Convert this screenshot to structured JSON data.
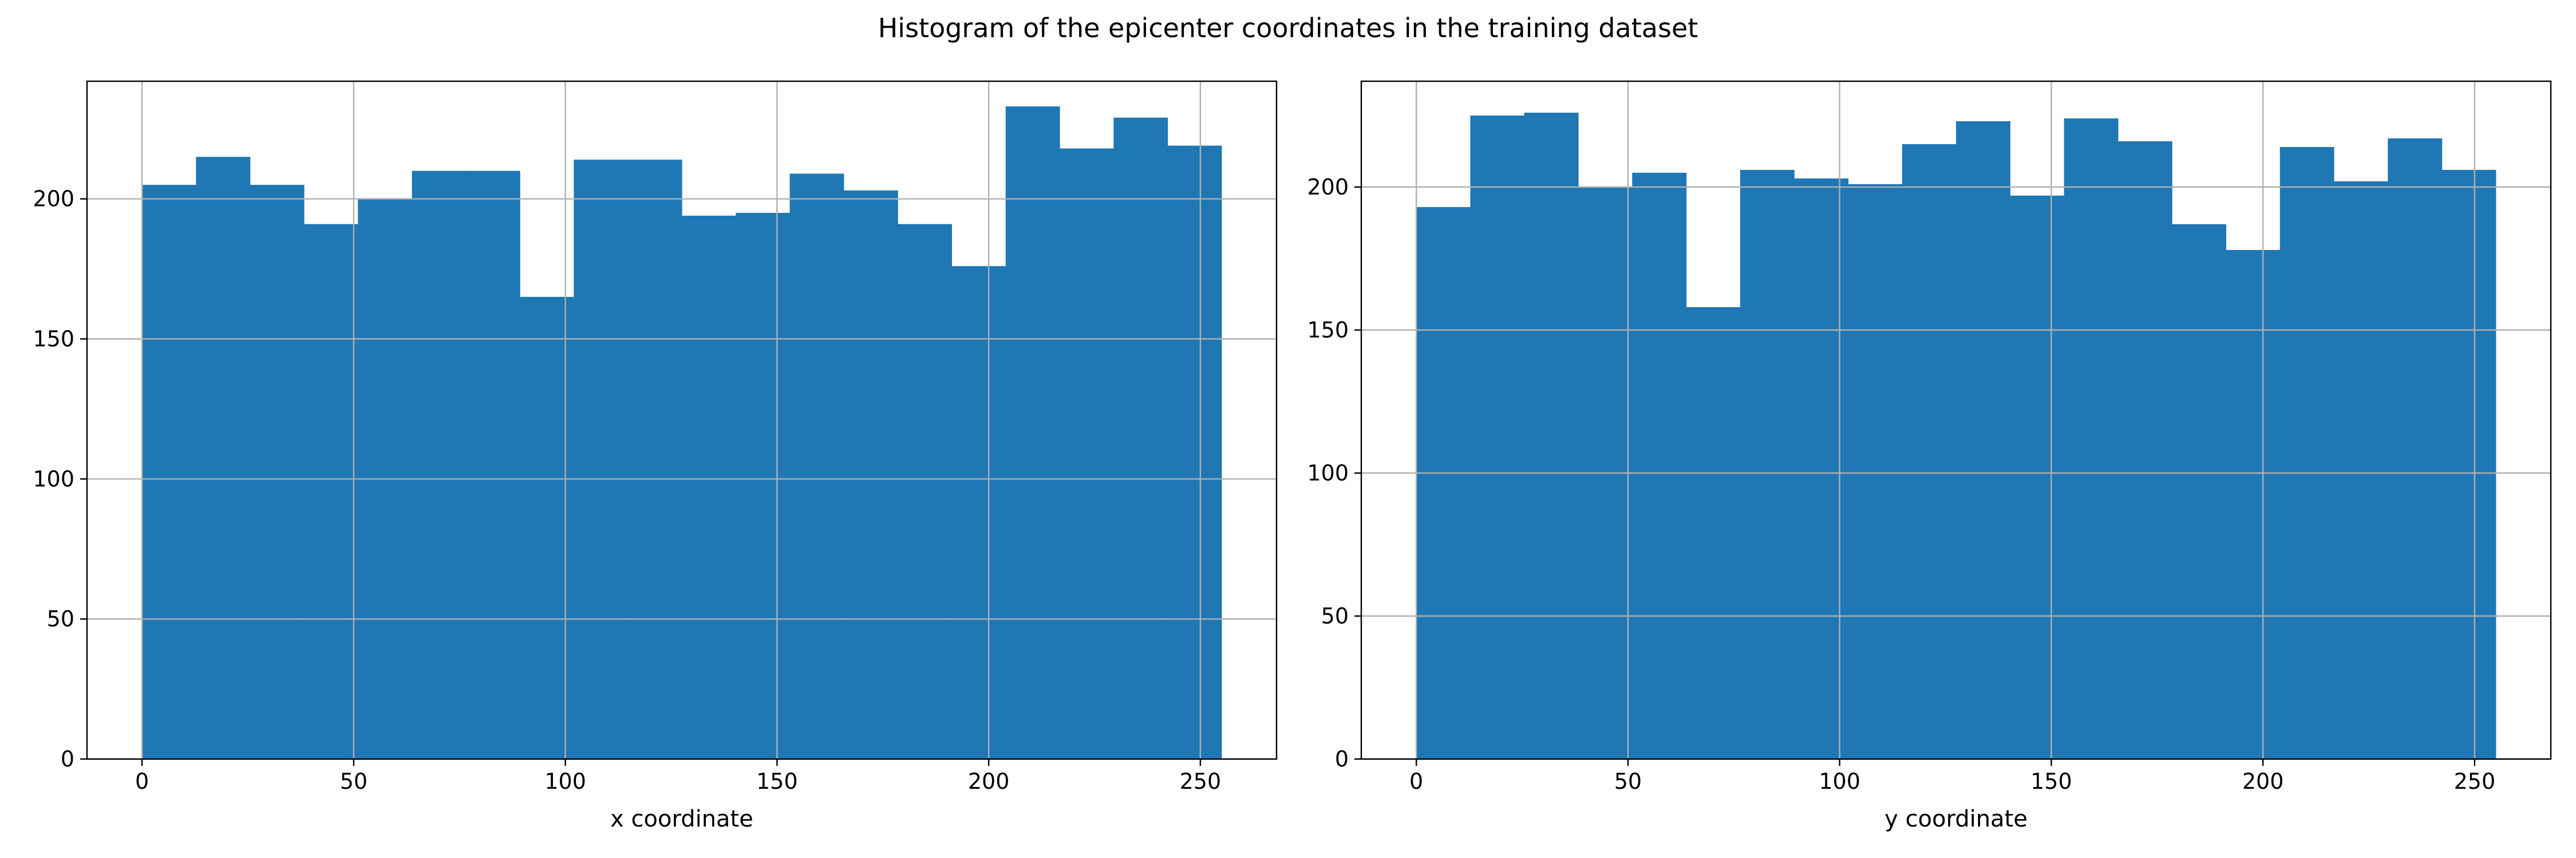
{
  "figure": {
    "title": "Histogram of the epicenter coordinates in the training dataset"
  },
  "colors": {
    "bar": "#1f77b4",
    "grid": "#b0b0b0",
    "axis": "#000000"
  },
  "chart_data": [
    {
      "type": "bar",
      "subtype": "histogram",
      "title": "",
      "xlabel": "x coordinate",
      "ylabel": "",
      "bin_edges": [
        0,
        12.75,
        25.5,
        38.25,
        51,
        63.75,
        76.5,
        89.25,
        102,
        114.75,
        127.5,
        140.25,
        153,
        165.75,
        178.5,
        191.25,
        204,
        216.75,
        229.5,
        242.25,
        255
      ],
      "values": [
        205,
        215,
        205,
        191,
        200,
        210,
        210,
        165,
        214,
        214,
        194,
        195,
        209,
        203,
        191,
        176,
        233,
        218,
        229,
        219
      ],
      "xlim": [
        -13,
        268
      ],
      "ylim": [
        0,
        242
      ],
      "xticks": [
        0,
        50,
        100,
        150,
        200,
        250
      ],
      "yticks": [
        0,
        50,
        100,
        150,
        200
      ],
      "grid": true
    },
    {
      "type": "bar",
      "subtype": "histogram",
      "title": "",
      "xlabel": "y coordinate",
      "ylabel": "",
      "bin_edges": [
        0,
        12.75,
        25.5,
        38.25,
        51,
        63.75,
        76.5,
        89.25,
        102,
        114.75,
        127.5,
        140.25,
        153,
        165.75,
        178.5,
        191.25,
        204,
        216.75,
        229.5,
        242.25,
        255
      ],
      "values": [
        193,
        225,
        226,
        200,
        205,
        158,
        206,
        203,
        201,
        215,
        223,
        197,
        224,
        216,
        187,
        178,
        214,
        202,
        217,
        206
      ],
      "xlim": [
        -13,
        268
      ],
      "ylim": [
        0,
        237
      ],
      "xticks": [
        0,
        50,
        100,
        150,
        200,
        250
      ],
      "yticks": [
        0,
        50,
        100,
        150,
        200
      ],
      "grid": true
    }
  ]
}
